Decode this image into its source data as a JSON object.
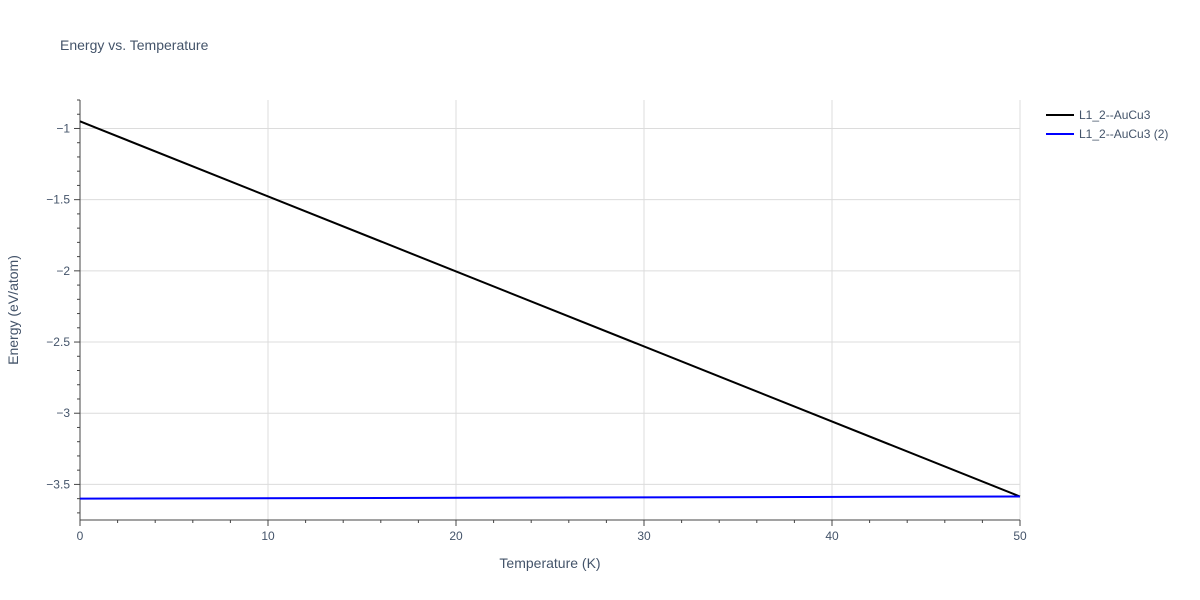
{
  "chart_data": {
    "type": "line",
    "title": "Energy vs. Temperature",
    "xlabel": "Temperature (K)",
    "ylabel": "Energy (eV/atom)",
    "xlim": [
      0,
      50
    ],
    "ylim": [
      -3.75,
      -0.8
    ],
    "xticks": [
      0,
      10,
      20,
      30,
      40,
      50
    ],
    "xtick_labels": [
      "0",
      "10",
      "20",
      "30",
      "40",
      "50"
    ],
    "yticks": [
      -1,
      -1.5,
      -2,
      -2.5,
      -3,
      -3.5
    ],
    "ytick_labels": [
      "−1",
      "−1.5",
      "−2",
      "−2.5",
      "−3",
      "−3.5"
    ],
    "grid": true,
    "legend_position": "top-right",
    "series": [
      {
        "name": "L1_2--AuCu3",
        "color": "#000000",
        "x": [
          0,
          50
        ],
        "y": [
          -0.95,
          -3.585
        ]
      },
      {
        "name": "L1_2--AuCu3 (2)",
        "color": "#0000ff",
        "x": [
          0,
          50
        ],
        "y": [
          -3.6,
          -3.585
        ]
      }
    ]
  }
}
